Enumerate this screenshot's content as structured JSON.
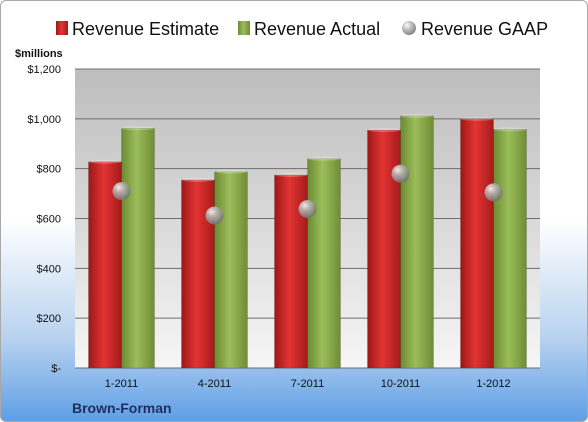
{
  "chart_data": {
    "type": "bar",
    "company": "Brown-Forman",
    "ylabel": "$millions",
    "categories": [
      "1-2011",
      "4-2011",
      "7-2011",
      "10-2011",
      "1-2012"
    ],
    "series": [
      {
        "name": "Revenue Estimate",
        "kind": "bar",
        "color": "#d42a2a",
        "values": [
          828,
          755,
          775,
          955,
          1000
        ]
      },
      {
        "name": "Revenue Actual",
        "kind": "bar",
        "color": "#8fb04e",
        "values": [
          962,
          788,
          840,
          1012,
          958
        ]
      },
      {
        "name": "Revenue GAAP",
        "kind": "marker",
        "color": "#a8a8a8",
        "values": [
          710,
          612,
          638,
          780,
          705
        ]
      }
    ],
    "ylim": [
      0,
      1200
    ],
    "yticks": [
      0,
      200,
      400,
      600,
      800,
      1000,
      1200
    ],
    "ytick_labels": [
      "$-",
      "$200",
      "$400",
      "$600",
      "$800",
      "$1,000",
      "$1,200"
    ],
    "grid": true,
    "legend_position": "top"
  }
}
